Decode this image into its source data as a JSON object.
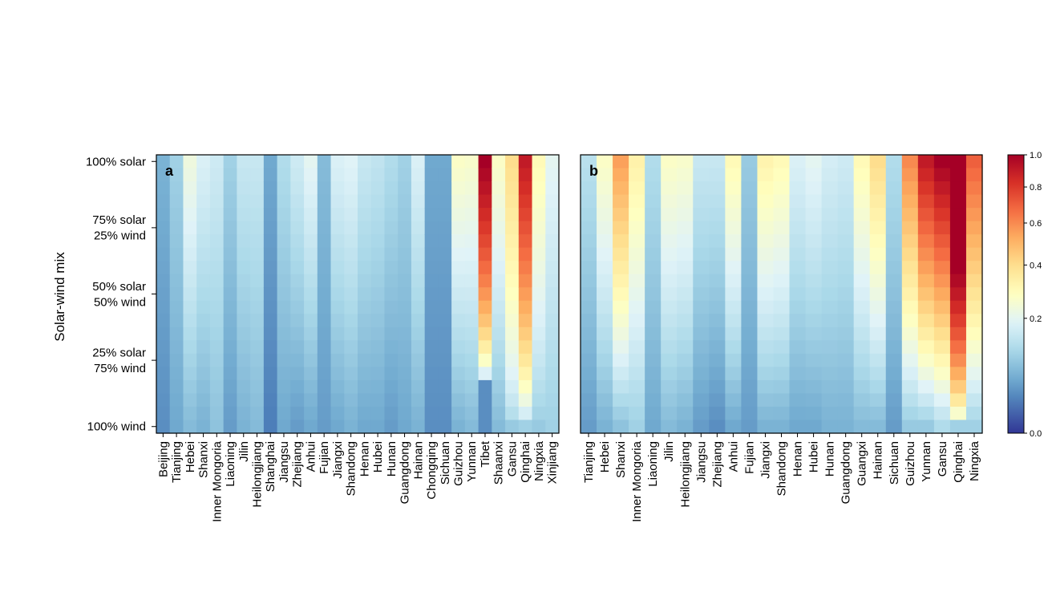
{
  "figure": {
    "ylabel": "Solar-wind mix",
    "y_ticks": [
      {
        "pos": 1.0,
        "lines": [
          "100% solar"
        ]
      },
      {
        "pos": 0.75,
        "lines": [
          "75% solar",
          "25% wind"
        ]
      },
      {
        "pos": 0.5,
        "lines": [
          "50% solar",
          "50% wind"
        ]
      },
      {
        "pos": 0.25,
        "lines": [
          "25% solar",
          "75% wind"
        ]
      },
      {
        "pos": 0.0,
        "lines": [
          "100% wind"
        ]
      }
    ],
    "colorbar": {
      "ticks": [
        {
          "value": 1.0,
          "label": "1.0"
        },
        {
          "value": 0.8,
          "label": "0.8"
        },
        {
          "value": 0.6,
          "label": "0.6"
        },
        {
          "value": 0.4,
          "label": "0.4"
        },
        {
          "value": 0.2,
          "label": "0.2"
        },
        {
          "value": 0.0,
          "label": "0.0"
        }
      ],
      "stops": [
        "#313695",
        "#4575b4",
        "#74add1",
        "#abd9e9",
        "#e0f3f8",
        "#ffffbf",
        "#fee090",
        "#fdae61",
        "#f46d43",
        "#d73027",
        "#a50026"
      ]
    }
  },
  "chart_data": [
    {
      "type": "heatmap",
      "panel_label": "a",
      "rows": 21,
      "row_axis": "solar share (top = 100% solar, bottom = 100% wind)",
      "categories": [
        "Beijing",
        "Tianjing",
        "Hebei",
        "Shanxi",
        "Inner Mongoria",
        "Liaoning",
        "Jilin",
        "Heilongjiang",
        "Shanghai",
        "Jiangsu",
        "Zhejiang",
        "Anhui",
        "Fujian",
        "Jiangxi",
        "Shandong",
        "Henan",
        "Hubei",
        "Hunan",
        "Guangdong",
        "Hainan",
        "Chongqing",
        "Sichuan",
        "Guizhou",
        "Yunnan",
        "Tibet",
        "Shaanxi",
        "Gansu",
        "Qinghai",
        "Ningxia",
        "Xinjiang"
      ],
      "top_values": [
        0.06,
        0.1,
        0.23,
        0.18,
        0.16,
        0.1,
        0.15,
        0.15,
        0.05,
        0.12,
        0.16,
        0.2,
        0.07,
        0.18,
        0.19,
        0.15,
        0.14,
        0.12,
        0.1,
        0.18,
        0.05,
        0.05,
        0.27,
        0.26,
        1.0,
        0.27,
        0.4,
        0.9,
        0.3,
        0.2
      ],
      "bottom_values": [
        0.03,
        0.05,
        0.07,
        0.06,
        0.08,
        0.04,
        0.06,
        0.07,
        0.02,
        0.05,
        0.04,
        0.05,
        0.04,
        0.05,
        0.06,
        0.05,
        0.05,
        0.04,
        0.05,
        0.06,
        0.03,
        0.03,
        0.06,
        0.07,
        0.03,
        0.07,
        0.09,
        0.1,
        0.09,
        0.1
      ],
      "profile": [
        "pow1.1",
        "pow1.1",
        "pow1.1",
        "pow1.1",
        "pow1.1",
        "pow1.1",
        "pow1.1",
        "pow1.1",
        "pow1.1",
        "pow1.1",
        "pow1.1",
        "pow1.1",
        "pow1.1",
        "pow1.1",
        "pow1.1",
        "pow1.1",
        "pow1.1",
        "pow1.1",
        "pow1.1",
        "pow1.1",
        "pow1.1",
        "pow1.1",
        "pow1.1",
        "pow1.1",
        "tibet",
        "pow1.1",
        "pow0.7",
        "pow0.8",
        "pow0.9",
        "pow1.1"
      ]
    },
    {
      "type": "heatmap",
      "panel_label": "b",
      "rows": 21,
      "row_axis": "solar share (top = 100% solar, bottom = 100% wind)",
      "categories": [
        "Tianjing",
        "Hebei",
        "Shanxi",
        "Inner Mongoria",
        "Liaoning",
        "Jilin",
        "Heilongjiang",
        "Jiangsu",
        "Zhejiang",
        "Anhui",
        "Fujian",
        "Jiangxi",
        "Shandong",
        "Henan",
        "Hubei",
        "Hunan",
        "Guangdong",
        "Guangxi",
        "Hainan",
        "Sichuan",
        "Guizhou",
        "Yunnan",
        "Gansu",
        "Qinghai",
        "Ningxia"
      ],
      "top_values": [
        0.13,
        0.27,
        0.55,
        0.33,
        0.12,
        0.27,
        0.26,
        0.15,
        0.15,
        0.3,
        0.09,
        0.32,
        0.3,
        0.18,
        0.2,
        0.17,
        0.16,
        0.3,
        0.4,
        0.12,
        0.6,
        0.9,
        1.0,
        1.0,
        0.7
      ],
      "bottom_values": [
        0.04,
        0.06,
        0.08,
        0.1,
        0.05,
        0.07,
        0.06,
        0.04,
        0.03,
        0.05,
        0.04,
        0.06,
        0.06,
        0.05,
        0.05,
        0.06,
        0.06,
        0.07,
        0.07,
        0.04,
        0.09,
        0.09,
        0.12,
        0.1,
        0.1
      ],
      "profile": [
        "pow1.1",
        "pow1.1",
        "pow1.1",
        "pow1.1",
        "pow1.1",
        "pow1.1",
        "pow1.1",
        "pow1.1",
        "pow1.1",
        "pow1.1",
        "pow1.1",
        "pow1.1",
        "pow1.1",
        "pow1.1",
        "pow1.1",
        "pow1.1",
        "pow1.1",
        "pow1.1",
        "pow1.1",
        "pow1.1",
        "pow1.1",
        "pow1.1",
        "pow1.1",
        "qinghai",
        "pow1.1"
      ]
    }
  ]
}
